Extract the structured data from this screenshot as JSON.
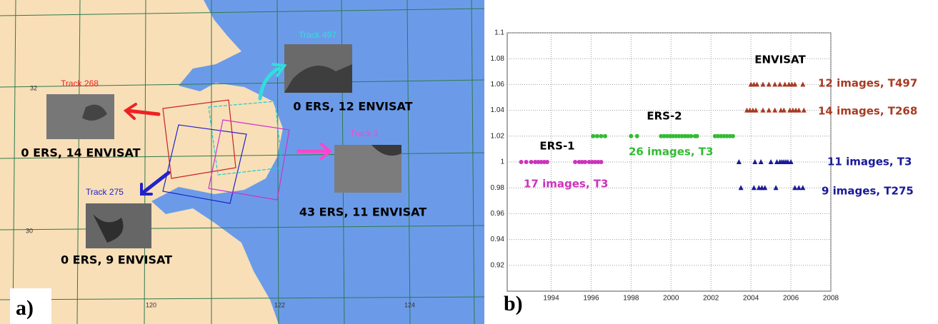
{
  "panel_labels": [
    "a)",
    "b)"
  ],
  "map": {
    "tracks": [
      {
        "label": "Track 497",
        "caption": "0 ERS, 12 ENVISAT"
      },
      {
        "label": "Track 268",
        "caption": "0 ERS, 14 ENVISAT"
      },
      {
        "label": "Track 3",
        "caption": "43 ERS, 11 ENVISAT"
      },
      {
        "label": "Track 275",
        "caption": "0 ERS, 9 ENVISAT"
      }
    ],
    "lat_labels": [
      "32",
      "30"
    ],
    "lon_labels": [
      "120",
      "122",
      "124"
    ]
  },
  "chart_data": {
    "type": "scatter",
    "xlim": [
      1991.8,
      2008
    ],
    "xticks": [
      1994,
      1996,
      1998,
      2000,
      2002,
      2004,
      2006,
      2008
    ],
    "ylim": [
      0.9,
      1.1
    ],
    "yticks": [
      0.92,
      0.94,
      0.96,
      0.98,
      1,
      1.02,
      1.04,
      1.06,
      1.08,
      1.1
    ],
    "grid": true,
    "annotations": [
      "ERS-1",
      "ERS-2",
      "ENVISAT"
    ],
    "series": [
      {
        "name": "17 images, T3",
        "color": "#cc33bb",
        "marker": "circle",
        "x": [
          1992.5,
          1992.75,
          1993.0,
          1993.2,
          1993.35,
          1993.5,
          1993.65,
          1993.8,
          1995.2,
          1995.4,
          1995.55,
          1995.7,
          1995.9,
          1996.05,
          1996.2,
          1996.35,
          1996.5
        ],
        "values": [
          1,
          1,
          1,
          1,
          1,
          1,
          1,
          1,
          1,
          1,
          1,
          1,
          1,
          1,
          1,
          1,
          1
        ]
      },
      {
        "name": "26 images, T3",
        "color": "#33bb33",
        "marker": "circle",
        "x": [
          1996.1,
          1996.3,
          1996.5,
          1996.7,
          1998.0,
          1998.3,
          1999.5,
          1999.65,
          1999.8,
          1999.95,
          2000.1,
          2000.25,
          2000.4,
          2000.55,
          2000.7,
          2000.85,
          2001.0,
          2001.2,
          2001.3,
          2002.2,
          2002.35,
          2002.5,
          2002.65,
          2002.8,
          2002.95,
          2003.1
        ],
        "values": [
          1.02,
          1.02,
          1.02,
          1.02,
          1.02,
          1.02,
          1.02,
          1.02,
          1.02,
          1.02,
          1.02,
          1.02,
          1.02,
          1.02,
          1.02,
          1.02,
          1.02,
          1.02,
          1.02,
          1.02,
          1.02,
          1.02,
          1.02,
          1.02,
          1.02,
          1.02
        ]
      },
      {
        "name": "12 images, T497",
        "color": "#a83a22",
        "marker": "triangle",
        "x": [
          2004.0,
          2004.15,
          2004.3,
          2004.6,
          2004.9,
          2005.2,
          2005.45,
          2005.7,
          2005.9,
          2006.05,
          2006.2,
          2006.6
        ],
        "values": [
          1.06,
          1.06,
          1.06,
          1.06,
          1.06,
          1.06,
          1.06,
          1.06,
          1.06,
          1.06,
          1.06,
          1.06
        ]
      },
      {
        "name": "14 images, T268",
        "color": "#a83a22",
        "marker": "triangle",
        "x": [
          2003.8,
          2003.95,
          2004.1,
          2004.25,
          2004.6,
          2004.9,
          2005.2,
          2005.5,
          2005.65,
          2005.95,
          2006.1,
          2006.25,
          2006.4,
          2006.65
        ],
        "values": [
          1.04,
          1.04,
          1.04,
          1.04,
          1.04,
          1.04,
          1.04,
          1.04,
          1.04,
          1.04,
          1.04,
          1.04,
          1.04,
          1.04
        ]
      },
      {
        "name": "11 images, T3",
        "color": "#1a1a99",
        "marker": "triangle",
        "x": [
          2003.4,
          2004.2,
          2004.5,
          2005.0,
          2005.3,
          2005.45,
          2005.55,
          2005.65,
          2005.75,
          2005.85,
          2006.0
        ],
        "values": [
          1,
          1,
          1,
          1,
          1,
          1,
          1,
          1,
          1,
          1,
          1
        ]
      },
      {
        "name": "9 images, T275",
        "color": "#1a1a99",
        "marker": "triangle",
        "x": [
          2003.5,
          2004.15,
          2004.4,
          2004.55,
          2004.7,
          2005.25,
          2006.2,
          2006.4,
          2006.6
        ],
        "values": [
          0.98,
          0.98,
          0.98,
          0.98,
          0.98,
          0.98,
          0.98,
          0.98,
          0.98
        ]
      }
    ]
  }
}
